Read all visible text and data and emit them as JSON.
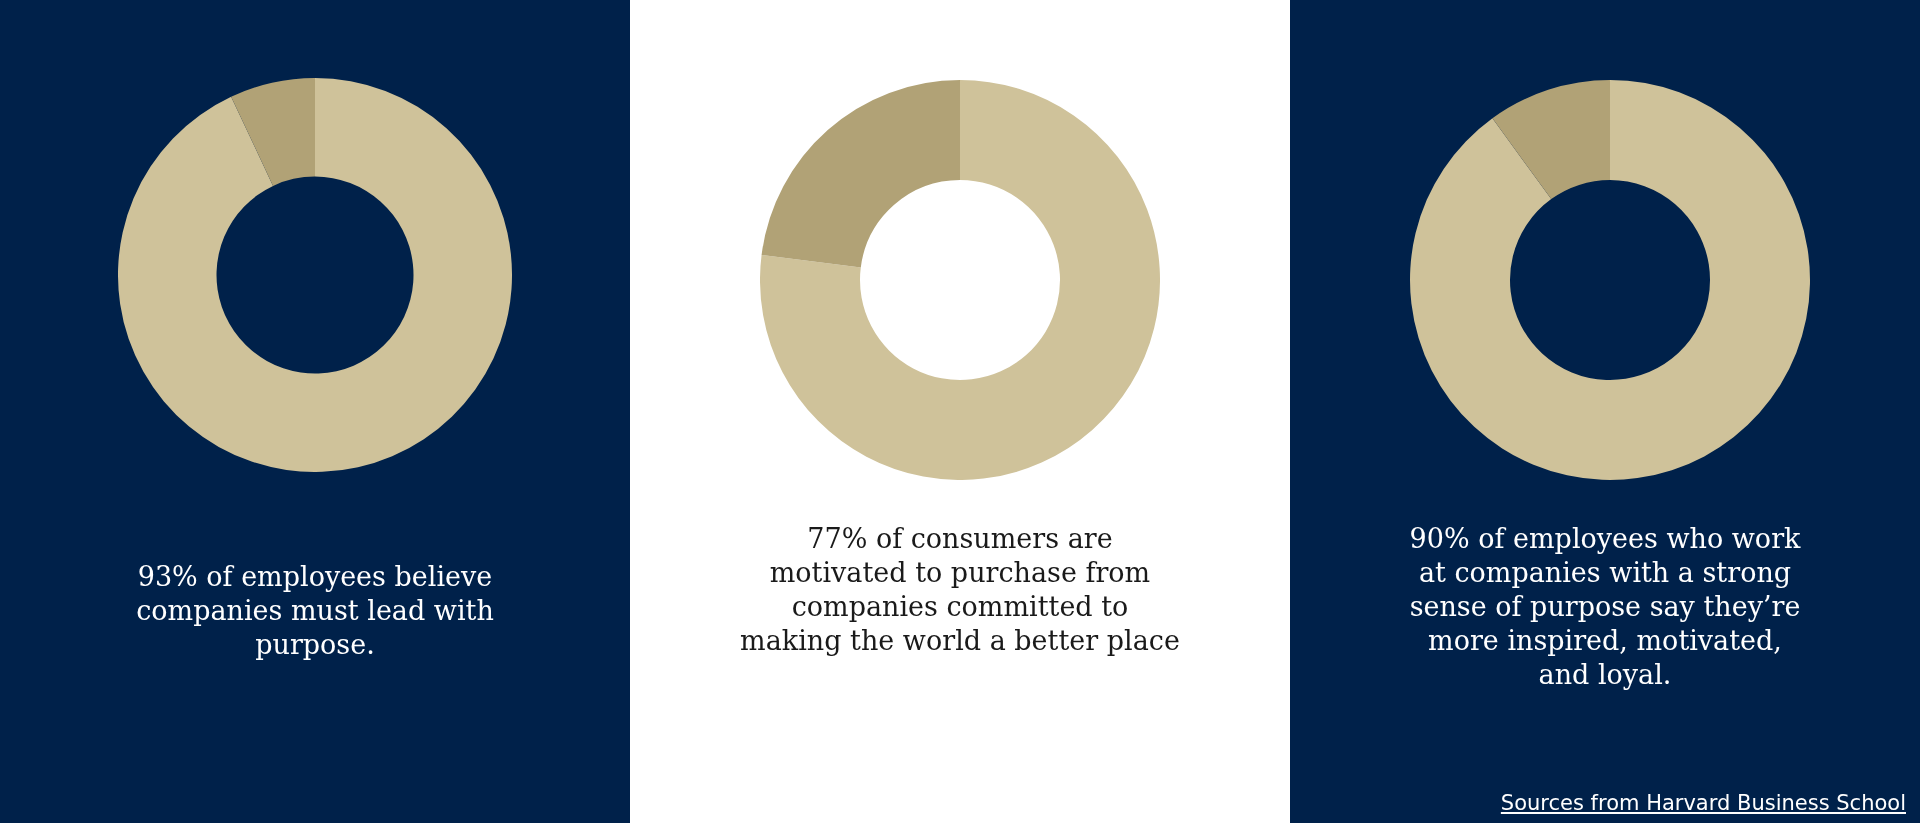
{
  "chart_data": [
    {
      "type": "donut",
      "categories": [
        null,
        null
      ],
      "values": [
        93,
        7
      ],
      "colors": [
        "#cfc29a",
        "#b1a276"
      ],
      "annotations": [
        "93% of employees believe companies must lead with purpose."
      ]
    },
    {
      "type": "donut",
      "categories": [
        null,
        null
      ],
      "values": [
        77,
        23
      ],
      "colors": [
        "#cfc29a",
        "#b1a276"
      ],
      "annotations": [
        "77% of consumers are motivated to purchase from companies committed to making the world a better place"
      ]
    },
    {
      "type": "donut",
      "categories": [
        null,
        null
      ],
      "values": [
        90,
        10
      ],
      "colors": [
        "#cfc29a",
        "#b1a276"
      ],
      "annotations": [
        "90% of employees who work at companies with a strong sense of purpose say they’re more inspired, motivated, and loyal.",
        "Sources from Harvard Business School"
      ]
    }
  ]
}
